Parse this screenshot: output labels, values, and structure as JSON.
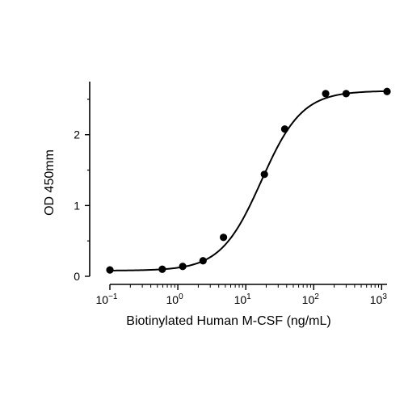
{
  "chart_data": {
    "type": "scatter",
    "title": "",
    "xlabel": "Biotinylated Human M-CSF (ng/mL)",
    "ylabel": "OD 450mm",
    "x_scale": "log",
    "xlim": [
      0.1,
      1200
    ],
    "ylim": [
      0,
      2.75
    ],
    "grid": false,
    "legend": "none",
    "x_ticks": [
      {
        "value": 0.1,
        "base": "10",
        "exp": "−1"
      },
      {
        "value": 1,
        "base": "10",
        "exp": "0"
      },
      {
        "value": 10,
        "base": "10",
        "exp": "1"
      },
      {
        "value": 100,
        "base": "10",
        "exp": "2"
      },
      {
        "value": 1000,
        "base": "10",
        "exp": "3"
      }
    ],
    "y_ticks": [
      {
        "value": 0,
        "label": "0"
      },
      {
        "value": 1,
        "label": "1"
      },
      {
        "value": 2,
        "label": "2"
      }
    ],
    "series": [
      {
        "points": [
          {
            "x": 0.1,
            "y": 0.09
          },
          {
            "x": 0.59,
            "y": 0.1
          },
          {
            "x": 1.18,
            "y": 0.14
          },
          {
            "x": 2.35,
            "y": 0.22
          },
          {
            "x": 4.7,
            "y": 0.55
          },
          {
            "x": 18.8,
            "y": 1.44
          },
          {
            "x": 37.5,
            "y": 2.08
          },
          {
            "x": 150,
            "y": 2.58
          },
          {
            "x": 300,
            "y": 2.58
          },
          {
            "x": 1200,
            "y": 2.61
          }
        ],
        "fit": {
          "model": "4PL",
          "bottom": 0.08,
          "top": 2.62,
          "ec50": 17,
          "hill": 1.45
        }
      }
    ],
    "colors": {
      "marker": "#000000",
      "line": "#000000",
      "axis": "#000000"
    }
  }
}
